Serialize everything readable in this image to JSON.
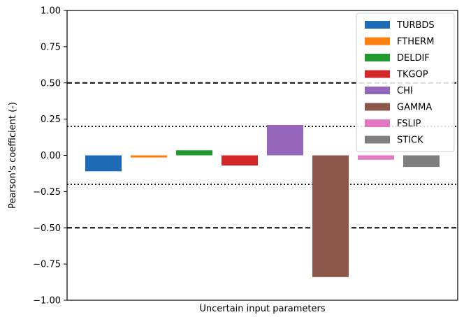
{
  "chart_data": {
    "type": "bar",
    "title": "",
    "xlabel": "Uncertain input parameters",
    "ylabel": "Pearson's coefficient (-)",
    "ylim": [
      -1.0,
      1.0
    ],
    "yticks": [
      -1.0,
      -0.75,
      -0.5,
      -0.25,
      0.0,
      0.25,
      0.5,
      0.75,
      1.0
    ],
    "ytick_labels": [
      "−1.00",
      "−0.75",
      "−0.50",
      "−0.25",
      "0.00",
      "0.25",
      "0.50",
      "0.75",
      "1.00"
    ],
    "legend_position": "top-right",
    "grid": false,
    "series": [
      {
        "name": "TURBDS",
        "value": -0.11,
        "color": "#1f6bb8"
      },
      {
        "name": "FTHERM",
        "value": -0.015,
        "color": "#ff7f0e"
      },
      {
        "name": "DELDIF",
        "value": 0.035,
        "color": "#1f9a2c"
      },
      {
        "name": "TKGOP",
        "value": -0.07,
        "color": "#d62728"
      },
      {
        "name": "CHI",
        "value": 0.21,
        "color": "#9467bd"
      },
      {
        "name": "GAMMA",
        "value": -0.84,
        "color": "#8c564b"
      },
      {
        "name": "FSLIP",
        "value": -0.03,
        "color": "#e377c2"
      },
      {
        "name": "STICK",
        "value": -0.08,
        "color": "#7f7f7f"
      }
    ],
    "reference_lines": [
      {
        "value": 0.5,
        "style": "dashed"
      },
      {
        "value": -0.5,
        "style": "dashed"
      },
      {
        "value": 0.2,
        "style": "dotted"
      },
      {
        "value": -0.2,
        "style": "dotted"
      }
    ]
  }
}
